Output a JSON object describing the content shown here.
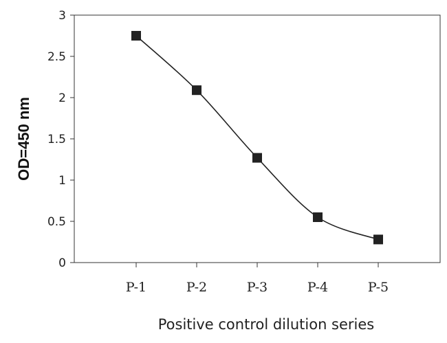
{
  "chart_data": {
    "type": "line",
    "categories": [
      "P-1",
      "P-2",
      "P-3",
      "P-4",
      "P-5"
    ],
    "series": [
      {
        "values": [
          2.75,
          2.09,
          1.27,
          0.55,
          0.28
        ],
        "color": "#222222",
        "marker": "square"
      }
    ],
    "xlabel": "Positive control dilution series",
    "ylabel": "OD=450 nm",
    "ylim": [
      0,
      3
    ],
    "yticks": [
      "0",
      "0.5",
      "1",
      "1.5",
      "2",
      "2.5",
      "3"
    ],
    "grid": false,
    "line_style": "smooth"
  }
}
